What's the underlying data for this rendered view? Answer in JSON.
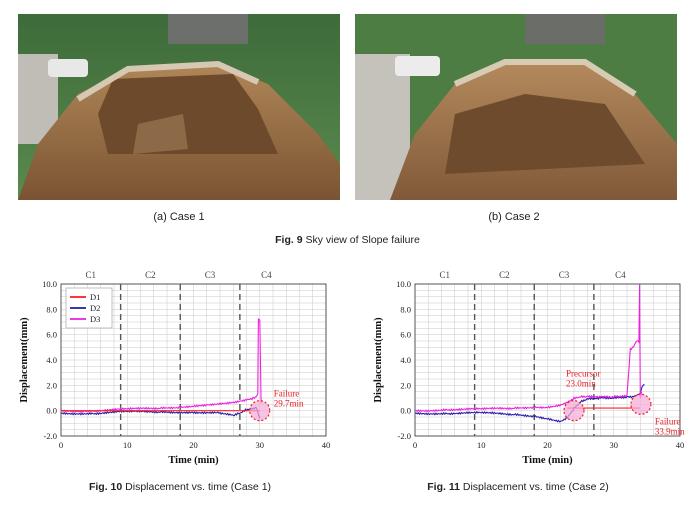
{
  "figure9": {
    "sub_captions": [
      "(a) Case 1",
      "(b) Case 2"
    ],
    "caption_label": "Fig. 9",
    "caption_text": " Sky view of Slope failure"
  },
  "colors": {
    "D1": "#ff2020",
    "D2": "#2a1fa8",
    "D3": "#ee22dd",
    "grid": "#c8c8c8",
    "stage_line": "#555555",
    "failure_text": "#e8202a",
    "marker_fill": "#f6a9d8",
    "marker_stroke": "#e8202a"
  },
  "chart_data": [
    {
      "type": "line",
      "figure": "Fig. 10",
      "caption_label": "Fig. 10",
      "caption_text": " Displacement vs. time (Case 1)",
      "xlabel": "Time (min)",
      "ylabel": "Displacement(mm)",
      "xlim": [
        0,
        40
      ],
      "ylim": [
        -2.0,
        10.0
      ],
      "xticks": [
        "0",
        "10",
        "20",
        "30",
        "40"
      ],
      "yticks": [
        "-2.0",
        "0.0",
        "2.0",
        "4.0",
        "6.0",
        "8.0",
        "10.0"
      ],
      "grid": true,
      "legend_position": "top-left",
      "stage_lines": [
        9,
        18,
        27
      ],
      "stages": [
        {
          "label": "C1",
          "x": 4.5
        },
        {
          "label": "C2",
          "x": 13.5
        },
        {
          "label": "C3",
          "x": 22.5
        },
        {
          "label": "C4",
          "x": 31.0
        }
      ],
      "series": [
        {
          "name": "D1",
          "x": [
            0,
            30.0
          ],
          "y": [
            0.0,
            0.0
          ]
        },
        {
          "name": "D2",
          "x": [
            0,
            5,
            10,
            15,
            20,
            24,
            26,
            27,
            28,
            29,
            29.5,
            30.0
          ],
          "y": [
            -0.2,
            -0.2,
            -0.1,
            -0.1,
            -0.1,
            -0.2,
            -0.4,
            -0.2,
            0.1,
            0.2,
            0.3,
            -0.6
          ]
        },
        {
          "name": "D3",
          "x": [
            0,
            5,
            10,
            15,
            18,
            20,
            22,
            24,
            26,
            27,
            28,
            29,
            29.5,
            29.7,
            29.8,
            30.0,
            30.2
          ],
          "y": [
            0.0,
            0.0,
            0.1,
            0.2,
            0.3,
            0.4,
            0.5,
            0.6,
            0.7,
            0.8,
            0.9,
            1.0,
            1.1,
            1.3,
            7.2,
            7.2,
            0.6
          ]
        }
      ],
      "annotations": [
        {
          "text": "Failure",
          "text2": "29.7min",
          "x": 30.0,
          "y": 0.0
        }
      ]
    },
    {
      "type": "line",
      "figure": "Fig. 11",
      "caption_label": "Fig. 11",
      "caption_text": " Displacement vs. time (Case 2)",
      "xlabel": "Time (min)",
      "ylabel": "Displacement(mm)",
      "xlim": [
        0,
        40
      ],
      "ylim": [
        -2.0,
        10.0
      ],
      "xticks": [
        "0",
        "10",
        "20",
        "30",
        "40"
      ],
      "yticks": [
        "-2.0",
        "0.0",
        "2.0",
        "4.0",
        "6.0",
        "8.0",
        "10.0"
      ],
      "grid": true,
      "stage_lines": [
        9,
        18,
        27
      ],
      "stages": [
        {
          "label": "C1",
          "x": 4.5
        },
        {
          "label": "C2",
          "x": 13.5
        },
        {
          "label": "C3",
          "x": 22.5
        },
        {
          "label": "C4",
          "x": 31.0
        }
      ],
      "series": [
        {
          "name": "D1",
          "x": [
            23.0,
            33.9
          ],
          "y": [
            0.2,
            0.2
          ]
        },
        {
          "name": "D2",
          "x": [
            0,
            5,
            10,
            15,
            18,
            20,
            22,
            23,
            24,
            25,
            26,
            28,
            30,
            32,
            33,
            33.5,
            33.9,
            34.3,
            34.6
          ],
          "y": [
            -0.2,
            -0.2,
            -0.2,
            -0.3,
            -0.4,
            -0.6,
            -0.8,
            -0.5,
            0.2,
            0.7,
            0.9,
            1.0,
            1.0,
            1.1,
            1.1,
            1.2,
            1.4,
            1.9,
            2.1
          ]
        },
        {
          "name": "D3",
          "x": [
            0,
            5,
            10,
            15,
            18,
            20,
            22,
            23,
            24,
            25,
            26,
            28,
            30,
            32,
            32.5,
            33,
            33.5,
            33.8,
            33.9,
            34.0,
            34.2
          ],
          "y": [
            0.0,
            0.1,
            0.1,
            0.2,
            0.3,
            0.3,
            0.5,
            0.7,
            1.0,
            1.1,
            1.1,
            1.1,
            1.1,
            1.2,
            4.8,
            5.0,
            5.5,
            5.3,
            10.0,
            1.0,
            1.5
          ]
        }
      ],
      "annotations": [
        {
          "text": "Precursor",
          "text2": "23.0min",
          "x": 24.0,
          "y": 0.0
        },
        {
          "text": "Failure",
          "text2": "33.9min",
          "x": 34.1,
          "y": 0.5
        }
      ]
    }
  ]
}
